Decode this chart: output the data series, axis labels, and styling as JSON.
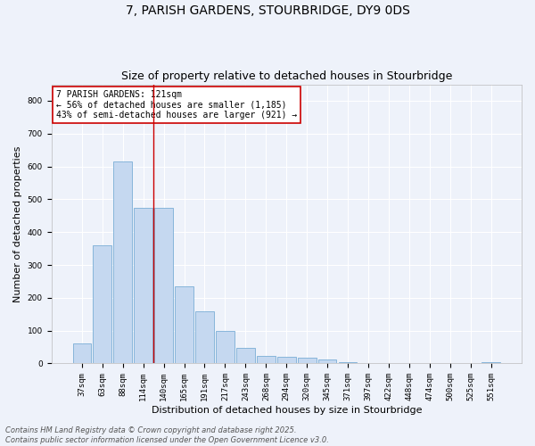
{
  "title": "7, PARISH GARDENS, STOURBRIDGE, DY9 0DS",
  "subtitle": "Size of property relative to detached houses in Stourbridge",
  "xlabel": "Distribution of detached houses by size in Stourbridge",
  "ylabel": "Number of detached properties",
  "categories": [
    "37sqm",
    "63sqm",
    "88sqm",
    "114sqm",
    "140sqm",
    "165sqm",
    "191sqm",
    "217sqm",
    "243sqm",
    "268sqm",
    "294sqm",
    "320sqm",
    "345sqm",
    "371sqm",
    "397sqm",
    "422sqm",
    "448sqm",
    "474sqm",
    "500sqm",
    "525sqm",
    "551sqm"
  ],
  "values": [
    62,
    360,
    616,
    473,
    473,
    236,
    160,
    98,
    48,
    22,
    20,
    18,
    13,
    4,
    2,
    2,
    1,
    1,
    1,
    2,
    3
  ],
  "bar_color": "#c5d8f0",
  "bar_edge_color": "#7aaed6",
  "vline_x_index": 3.5,
  "vline_color": "#cc0000",
  "annotation_text": "7 PARISH GARDENS: 121sqm\n← 56% of detached houses are smaller (1,185)\n43% of semi-detached houses are larger (921) →",
  "annotation_box_color": "#ffffff",
  "annotation_box_edge_color": "#cc0000",
  "ylim": [
    0,
    850
  ],
  "yticks": [
    0,
    100,
    200,
    300,
    400,
    500,
    600,
    700,
    800
  ],
  "background_color": "#eef2fa",
  "grid_color": "#ffffff",
  "footer": "Contains HM Land Registry data © Crown copyright and database right 2025.\nContains public sector information licensed under the Open Government Licence v3.0.",
  "title_fontsize": 10,
  "subtitle_fontsize": 9,
  "xlabel_fontsize": 8,
  "ylabel_fontsize": 8,
  "tick_fontsize": 6.5,
  "annotation_fontsize": 7,
  "footer_fontsize": 6
}
